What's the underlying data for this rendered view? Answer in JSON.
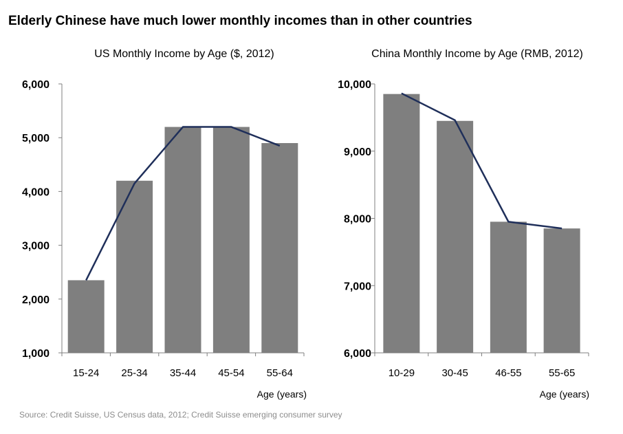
{
  "page_title": "Elderly Chinese have much lower monthly incomes than in other countries",
  "source": "Source: Credit Suisse, US Census data, 2012; Credit Suisse emerging consumer survey",
  "colors": {
    "bar": "#7f7f7f",
    "line": "#1f2f5a",
    "axis": "#7f7f7f"
  },
  "chart_data": [
    {
      "type": "bar",
      "title": "US Monthly Income by Age ($, 2012)",
      "xlabel": "Age (years)",
      "ylabel": "",
      "categories": [
        "15-24",
        "25-34",
        "35-44",
        "45-54",
        "55-64"
      ],
      "values": [
        2350,
        4200,
        5200,
        5200,
        4900
      ],
      "line_values": [
        2350,
        4150,
        5200,
        5200,
        4850
      ],
      "ylim": [
        1000,
        6000
      ],
      "yticks": [
        1000,
        2000,
        3000,
        4000,
        5000,
        6000
      ],
      "ytick_labels": [
        "1,000",
        "2,000",
        "3,000",
        "4,000",
        "5,000",
        "6,000"
      ],
      "grid": false,
      "legend": "none"
    },
    {
      "type": "bar",
      "title": "China Monthly Income by Age (RMB, 2012)",
      "xlabel": "Age (years)",
      "ylabel": "",
      "categories": [
        "10-29",
        "30-45",
        "46-55",
        "55-65"
      ],
      "values": [
        9850,
        9450,
        7950,
        7850
      ],
      "line_values": [
        9860,
        9460,
        7950,
        7850
      ],
      "ylim": [
        6000,
        10000
      ],
      "yticks": [
        6000,
        7000,
        8000,
        9000,
        10000
      ],
      "ytick_labels": [
        "6,000",
        "7,000",
        "8,000",
        "9,000",
        "10,000"
      ],
      "grid": false,
      "legend": "none"
    }
  ]
}
